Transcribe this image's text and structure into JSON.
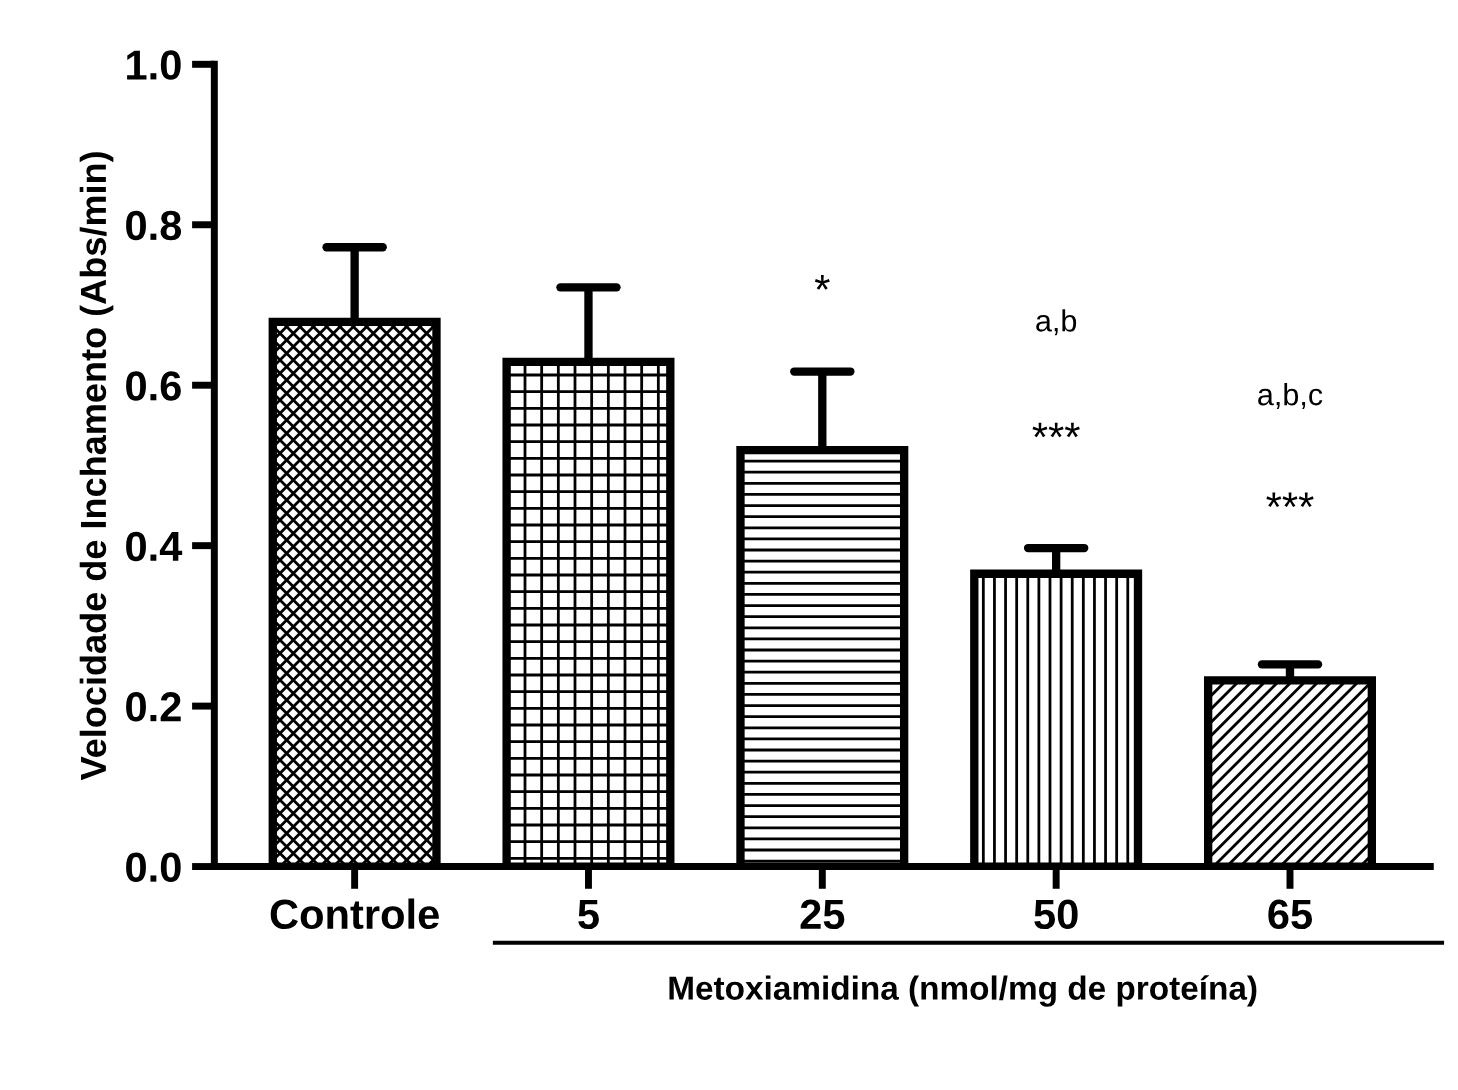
{
  "chart_data": {
    "type": "bar",
    "categories": [
      "Controle",
      "5",
      "25",
      "50",
      "65"
    ],
    "values": [
      0.679,
      0.629,
      0.519,
      0.365,
      0.232
    ],
    "errors": [
      [
        0.679,
        0.772
      ],
      [
        0.629,
        0.722
      ],
      [
        0.519,
        0.617
      ],
      [
        0.365,
        0.397
      ],
      [
        0.232,
        0.252
      ]
    ],
    "color": "#000000",
    "ylabel": "Velocidade de Inchamento (Abs/min)",
    "xlabel": "Metoxiamidina (nmol/mg de proteína)",
    "ylim": [
      0,
      1.0
    ],
    "yticks": [
      {
        "value": 0,
        "label": "0.0"
      },
      {
        "value": 0.2,
        "label": "0.2"
      },
      {
        "value": 0.4,
        "label": "0.4"
      },
      {
        "value": 0.6,
        "label": "0.6"
      },
      {
        "value": 0.8,
        "label": "0.8"
      },
      {
        "value": 1.0,
        "label": "1.0"
      }
    ],
    "grid": false,
    "legend": false,
    "annotations": [
      "*",
      "a,b",
      "***",
      "a,b,c",
      "***"
    ]
  }
}
